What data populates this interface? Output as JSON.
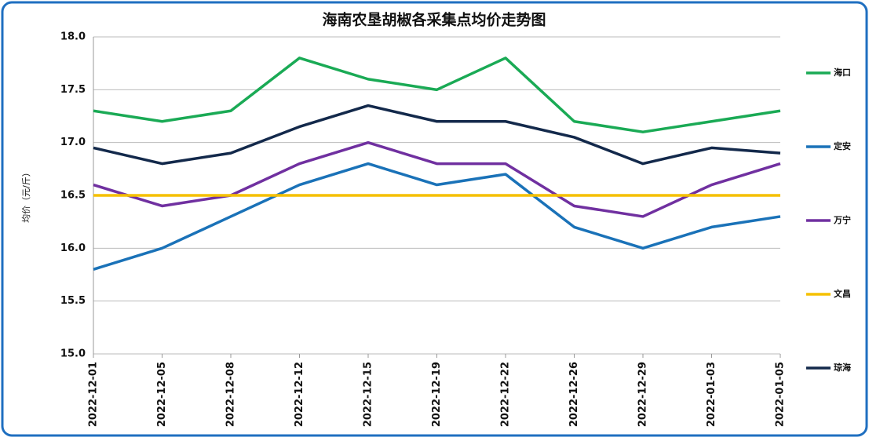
{
  "chart_data": {
    "type": "line",
    "title": "海南农垦胡椒各采集点均价走势图",
    "y_label": "均价（元/斤）",
    "categories": [
      "2022-12-01",
      "2022-12-05",
      "2022-12-08",
      "2022-12-12",
      "2022-12-15",
      "2022-12-19",
      "2022-12-22",
      "2022-12-26",
      "2022-12-29",
      "2022-01-03",
      "2022-01-05"
    ],
    "series": [
      {
        "name": "海口",
        "color": "#1aaa55",
        "values": [
          17.3,
          17.2,
          17.3,
          17.8,
          17.6,
          17.5,
          17.8,
          17.2,
          17.1,
          17.2,
          17.3
        ]
      },
      {
        "name": "定安",
        "color": "#1a72b8",
        "values": [
          15.8,
          16.0,
          16.3,
          16.6,
          16.8,
          16.6,
          16.7,
          16.2,
          16.0,
          16.2,
          16.3
        ]
      },
      {
        "name": "万宁",
        "color": "#7030a0",
        "values": [
          16.6,
          16.4,
          16.5,
          16.8,
          17.0,
          16.8,
          16.8,
          16.4,
          16.3,
          16.6,
          16.8
        ]
      },
      {
        "name": "文昌",
        "color": "#f5c000",
        "values": [
          16.5,
          16.5,
          16.5,
          16.5,
          16.5,
          16.5,
          16.5,
          16.5,
          16.5,
          16.5,
          16.5
        ]
      },
      {
        "name": "琼海",
        "color": "#13294b",
        "values": [
          16.95,
          16.8,
          16.9,
          17.15,
          17.35,
          17.2,
          17.2,
          17.05,
          16.8,
          16.95,
          16.9
        ]
      }
    ],
    "ylim": [
      15,
      18
    ],
    "yticks": [
      {
        "value": 15,
        "label": "15.0"
      },
      15.5,
      {
        "value": 16,
        "label": "16.0"
      },
      16.5,
      {
        "value": 17,
        "label": "17.0"
      },
      17.5,
      {
        "value": 18,
        "label": "18.0"
      }
    ],
    "grid": true,
    "legend": "right"
  }
}
